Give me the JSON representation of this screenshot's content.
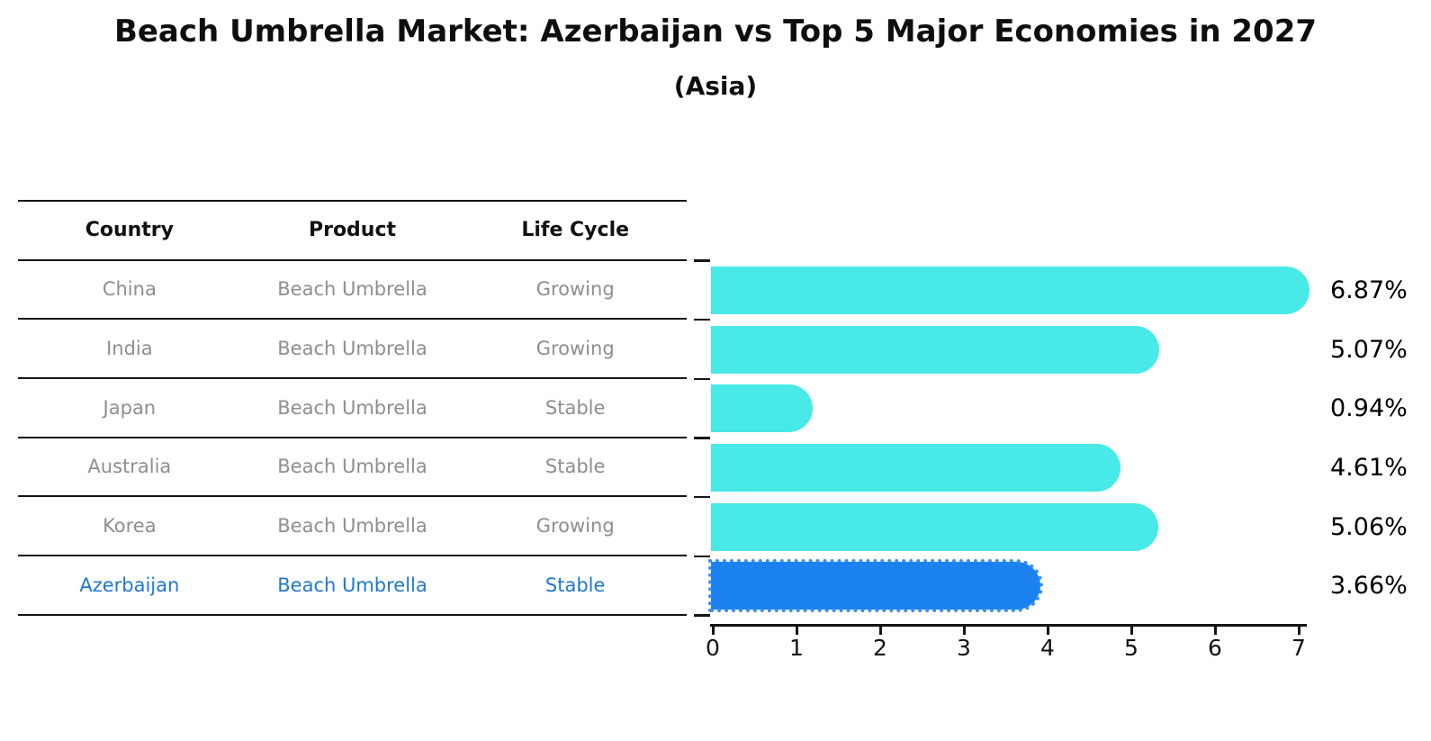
{
  "title": "Beach Umbrella Market: Azerbaijan vs Top 5 Major Economies in 2027",
  "subtitle": "(Asia)",
  "table": {
    "headers": [
      "Country",
      "Product",
      "Life Cycle"
    ],
    "rows": [
      {
        "country": "China",
        "product": "Beach Umbrella",
        "life_cycle": "Growing"
      },
      {
        "country": "India",
        "product": "Beach Umbrella",
        "life_cycle": "Growing"
      },
      {
        "country": "Japan",
        "product": "Beach Umbrella",
        "life_cycle": "Stable"
      },
      {
        "country": "Australia",
        "product": "Beach Umbrella",
        "life_cycle": "Stable"
      },
      {
        "country": "Korea",
        "product": "Beach Umbrella",
        "life_cycle": "Growing"
      },
      {
        "country": "Azerbaijan",
        "product": "Beach Umbrella",
        "life_cycle": "Stable"
      }
    ]
  },
  "chart_data": {
    "type": "bar",
    "orientation": "horizontal",
    "categories": [
      "China",
      "India",
      "Japan",
      "Australia",
      "Korea",
      "Azerbaijan"
    ],
    "values": [
      6.87,
      5.07,
      0.94,
      4.61,
      5.06,
      3.66
    ],
    "value_labels": [
      "6.87%",
      "5.07%",
      "0.94%",
      "4.61%",
      "5.06%",
      "3.66%"
    ],
    "x_ticks": [
      "0",
      "1",
      "2",
      "3",
      "4",
      "5",
      "6",
      "7"
    ],
    "xlim": [
      0,
      7.2
    ],
    "grid": false,
    "legend": false,
    "bar_color": "#48e9e7",
    "highlight_index": 5,
    "highlight_bar_color": "#1b81ee",
    "highlight_text_color": "#1f78cf",
    "value_label_color": "#000000",
    "axis_color": "#151515"
  }
}
